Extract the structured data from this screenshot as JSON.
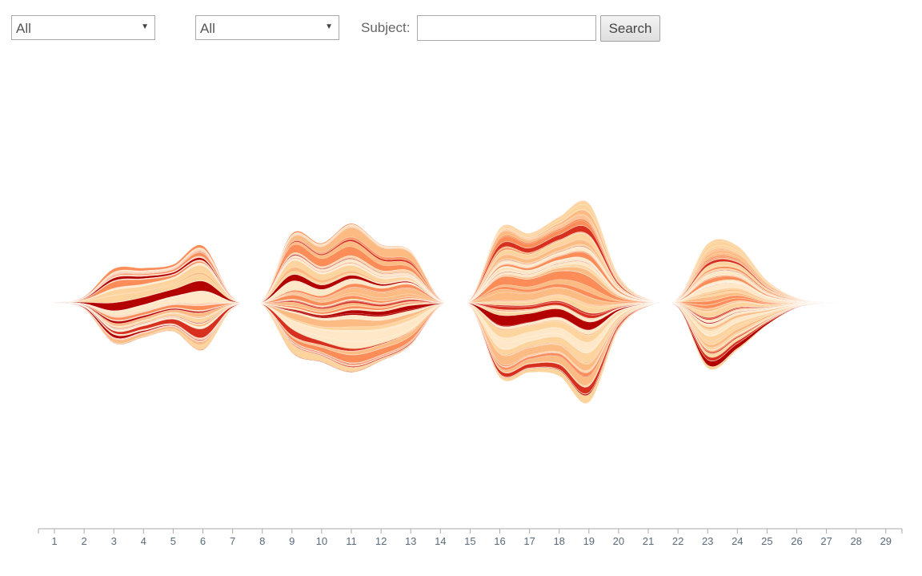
{
  "filters": {
    "first_select": {
      "value": "All"
    },
    "second_select": {
      "value": "All"
    },
    "subject_label": "Subject:",
    "subject_value": "",
    "search_label": "Search"
  },
  "colors": {
    "dark_red": "#b30000",
    "red": "#d7301f",
    "salmon": "#fc8d59",
    "peach": "#fdbb84",
    "light_peach": "#fdd49e",
    "pale": "#fee8c8",
    "axis": "#aaaaaa",
    "tick_label": "#5a6a7a"
  },
  "chart_data": {
    "type": "area",
    "layout": "streamgraph",
    "x": [
      1,
      2,
      3,
      4,
      5,
      6,
      7,
      8,
      9,
      10,
      11,
      12,
      13,
      14,
      15,
      16,
      17,
      18,
      19,
      20,
      21,
      22,
      23,
      24,
      25,
      26,
      27,
      28,
      29
    ],
    "xlabels": [
      "1",
      "2",
      "3",
      "4",
      "5",
      "6",
      "7",
      "8",
      "9",
      "10",
      "11",
      "12",
      "13",
      "14",
      "15",
      "16",
      "17",
      "18",
      "19",
      "20",
      "21",
      "22",
      "23",
      "24",
      "25",
      "26",
      "27",
      "28",
      "29"
    ],
    "total_height": [
      0.5,
      5,
      30,
      28,
      27,
      42,
      5,
      2,
      48,
      48,
      60,
      47,
      38,
      3,
      3,
      60,
      56,
      64,
      80,
      22,
      3,
      4,
      50,
      42,
      18,
      4,
      0.5,
      0,
      0
    ],
    "baseline_offset": [
      0,
      0,
      4,
      0,
      -6,
      -6,
      0,
      0,
      -12,
      0,
      -6,
      0,
      -6,
      0,
      0,
      0,
      0,
      -8,
      0,
      0,
      0,
      0,
      4,
      -6,
      0,
      0,
      0,
      0,
      0
    ],
    "series_count": 90,
    "title": "",
    "xlabel": "",
    "ylabel": "",
    "grid": false,
    "legend": "none"
  }
}
